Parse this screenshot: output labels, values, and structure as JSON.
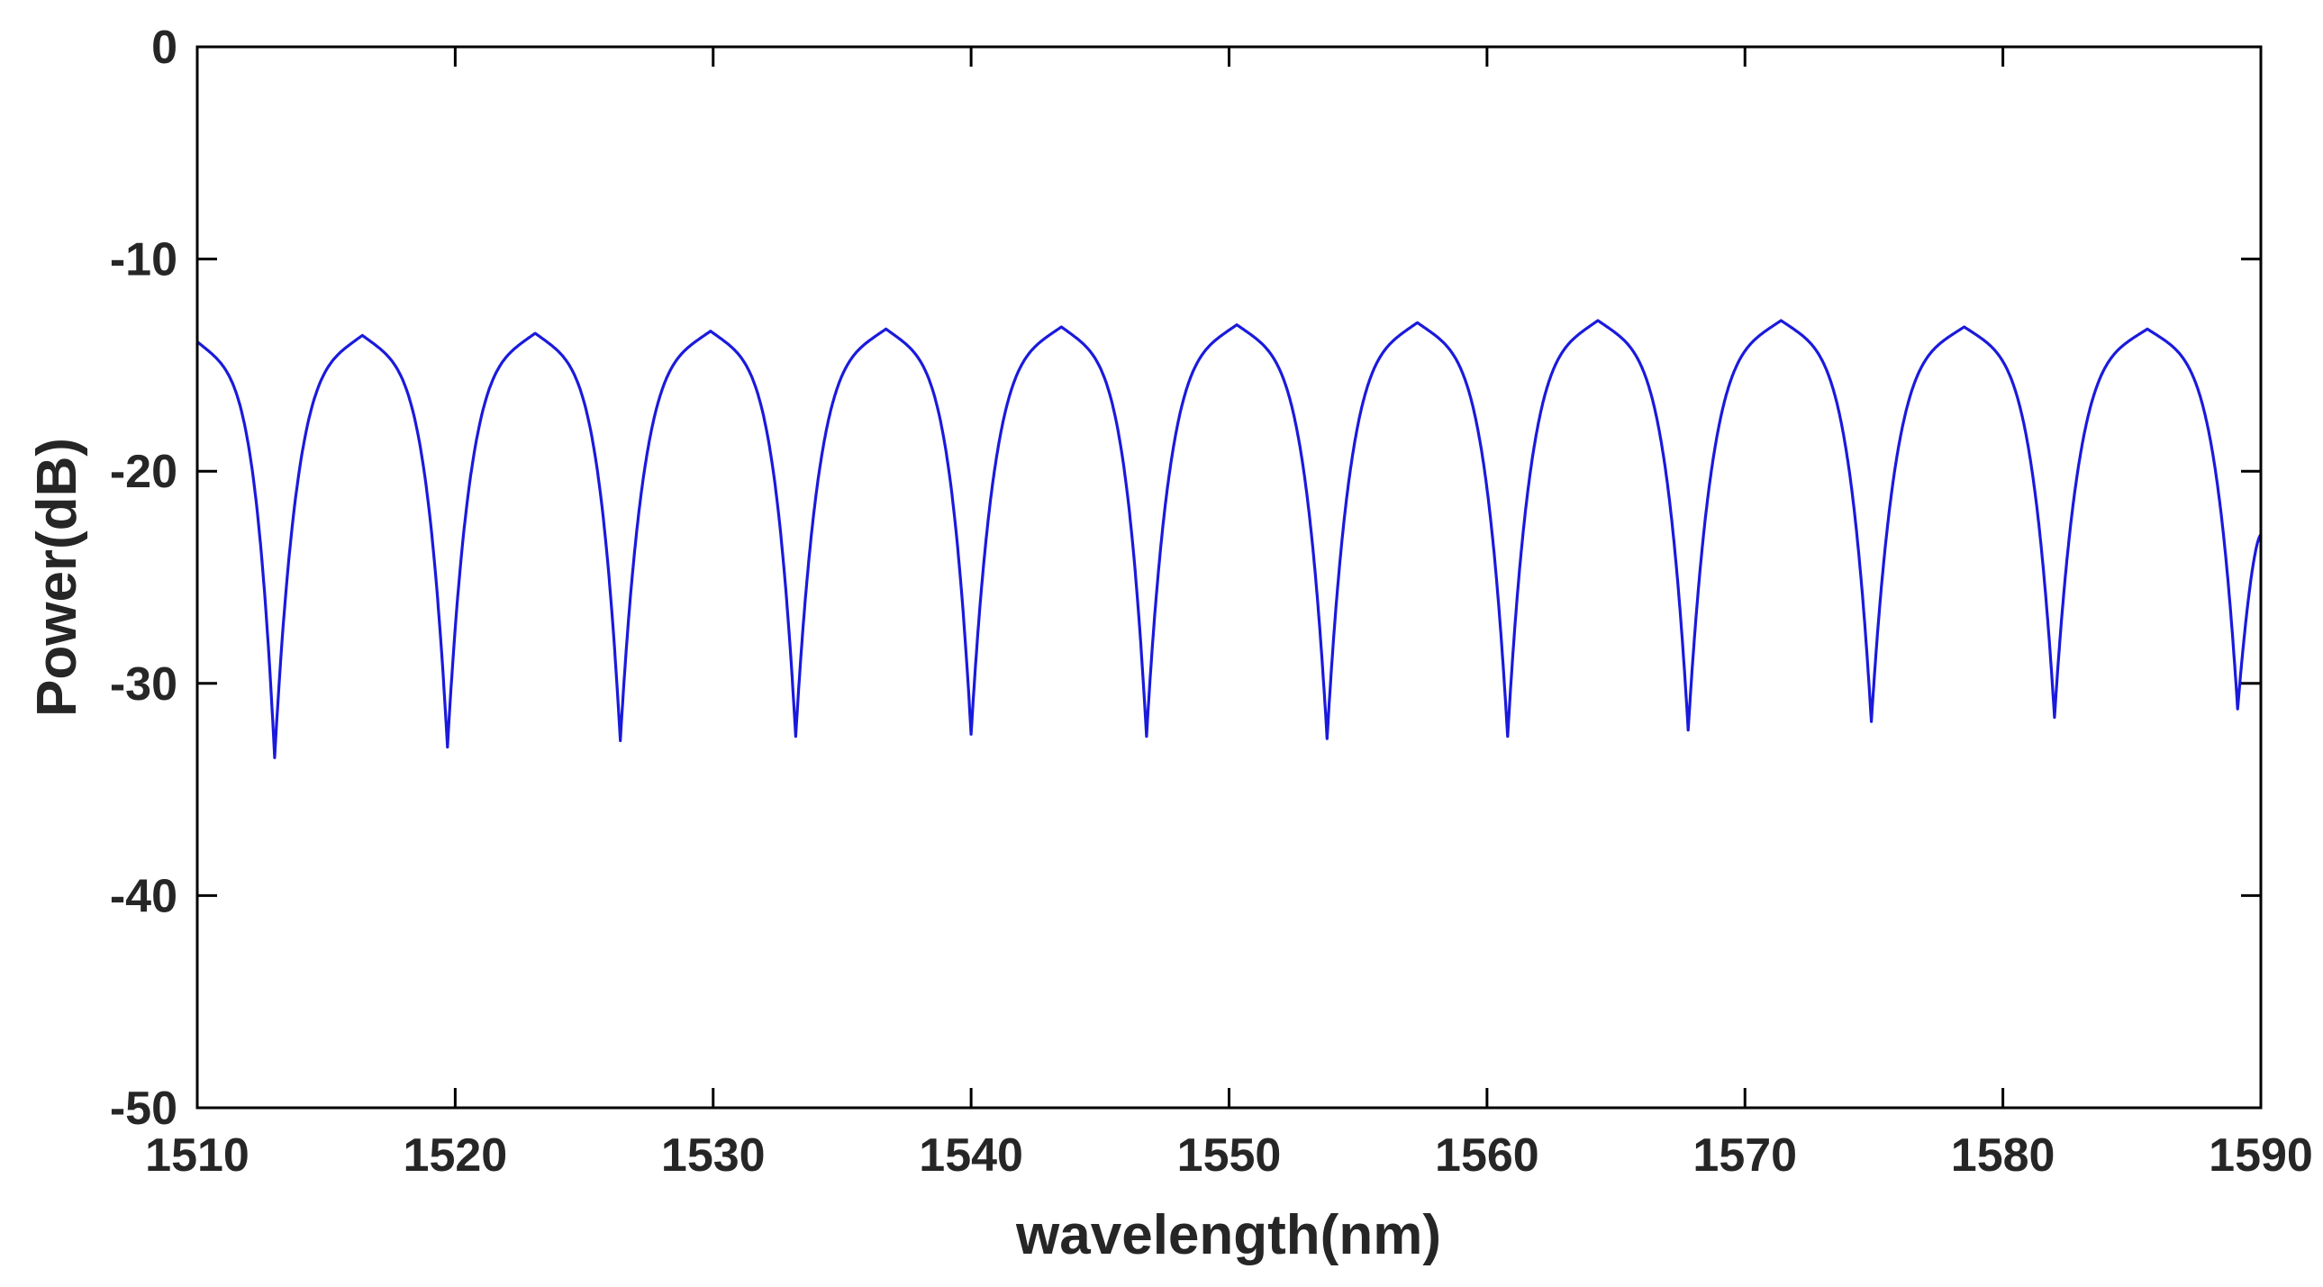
{
  "chart_data": {
    "type": "line",
    "xlabel": "wavelength(nm)",
    "ylabel": "Power(dB)",
    "xlim": [
      1510,
      1590
    ],
    "ylim": [
      -50,
      0
    ],
    "xticks": [
      1510,
      1520,
      1530,
      1540,
      1550,
      1560,
      1570,
      1580,
      1590
    ],
    "yticks": [
      0,
      -10,
      -20,
      -30,
      -40,
      -50
    ],
    "grid": false,
    "legend": "none",
    "box": true,
    "series": [
      {
        "color": "#1a1adc",
        "peaks": [
          {
            "x": 1516.4,
            "y": -13.6
          },
          {
            "x": 1523.1,
            "y": -13.5
          },
          {
            "x": 1529.9,
            "y": -13.4
          },
          {
            "x": 1536.7,
            "y": -13.3
          },
          {
            "x": 1543.5,
            "y": -13.2
          },
          {
            "x": 1550.3,
            "y": -13.1
          },
          {
            "x": 1557.3,
            "y": -13.0
          },
          {
            "x": 1564.3,
            "y": -12.9
          },
          {
            "x": 1571.4,
            "y": -12.9
          },
          {
            "x": 1578.5,
            "y": -13.2
          },
          {
            "x": 1585.6,
            "y": -13.3
          }
        ],
        "dips": [
          {
            "x": 1513.0,
            "y": -33.5
          },
          {
            "x": 1519.7,
            "y": -33.0
          },
          {
            "x": 1526.4,
            "y": -32.7
          },
          {
            "x": 1533.2,
            "y": -32.5
          },
          {
            "x": 1540.0,
            "y": -32.4
          },
          {
            "x": 1546.8,
            "y": -32.5
          },
          {
            "x": 1553.8,
            "y": -32.6
          },
          {
            "x": 1560.8,
            "y": -32.5
          },
          {
            "x": 1567.8,
            "y": -32.2
          },
          {
            "x": 1574.9,
            "y": -31.8
          },
          {
            "x": 1582.0,
            "y": -31.6
          },
          {
            "x": 1589.1,
            "y": -31.2
          }
        ],
        "start": {
          "x": 1510,
          "y": -13.9
        },
        "end": {
          "x": 1590,
          "y": -23.0
        }
      }
    ]
  }
}
